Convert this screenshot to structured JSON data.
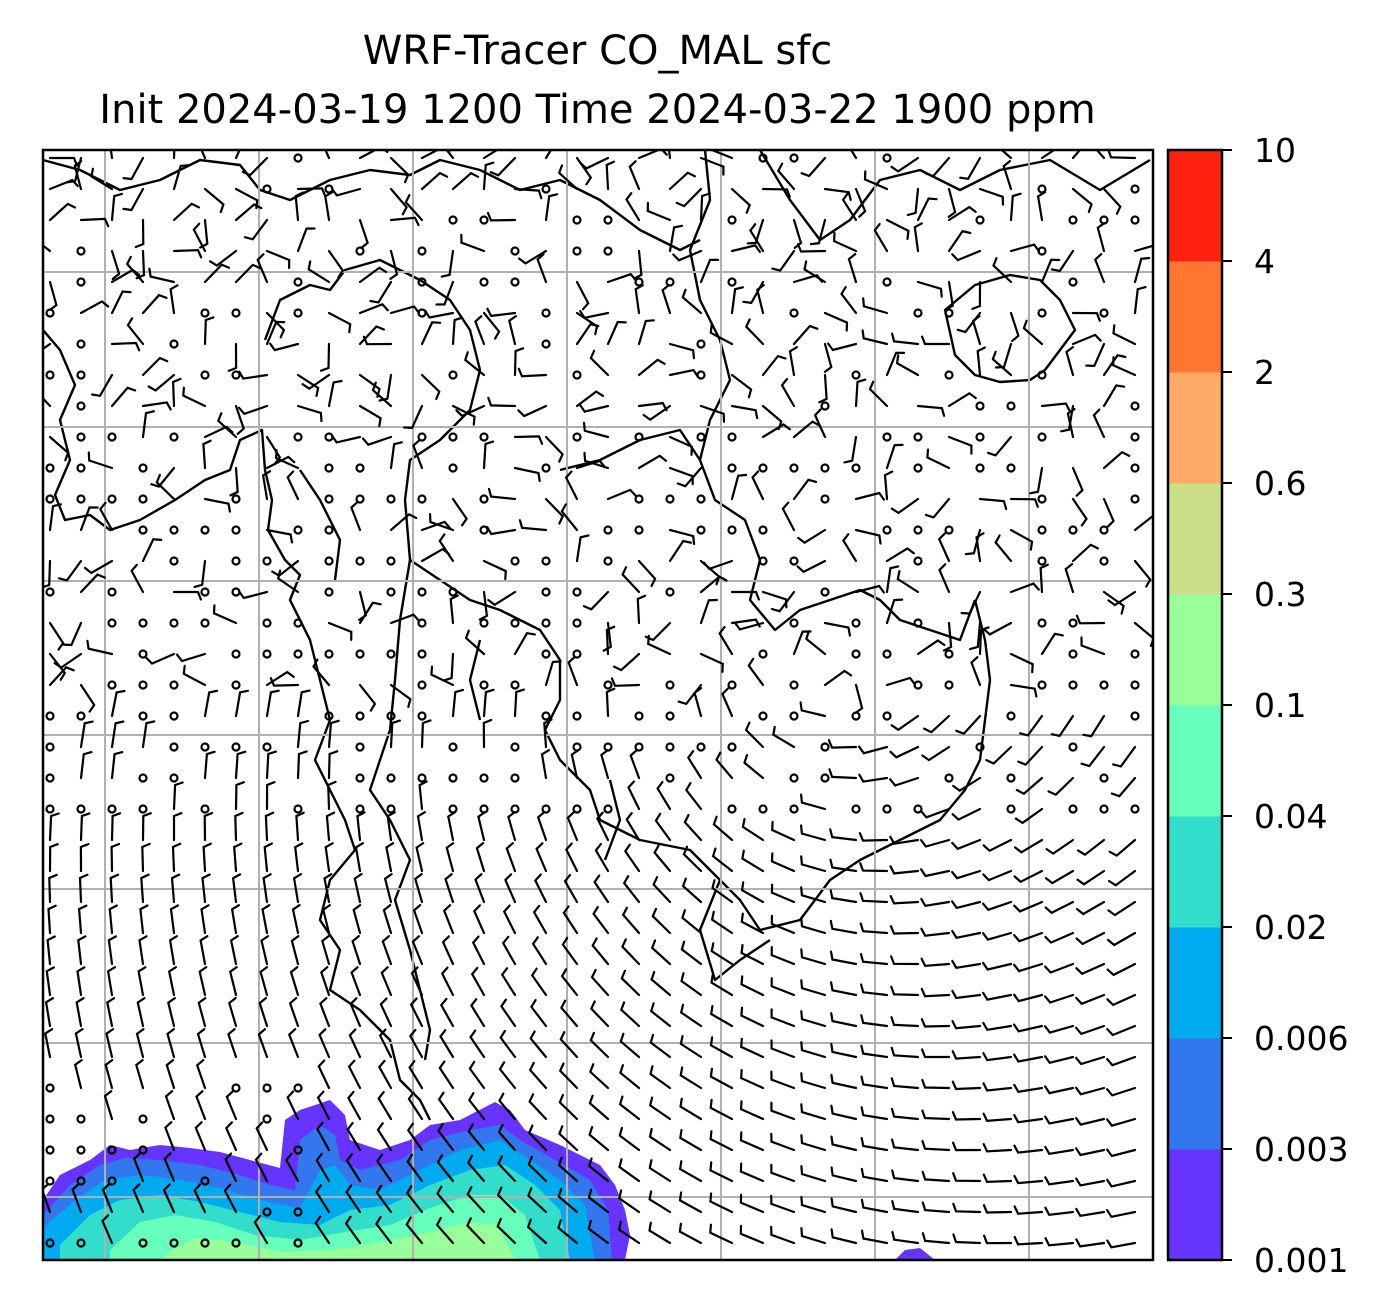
{
  "title": {
    "line1": "WRF-Tracer CO_MAL sfc",
    "line2": "Init 2024-03-19 1200 Time 2024-03-22 1900 ppm"
  },
  "map": {
    "background": "#ffffff",
    "gridline_color": "#b0b0b0",
    "coastline_color": "#000000",
    "wind_barbs": "present",
    "tracer_field_location": "bottom-left"
  },
  "colorbar": {
    "levels": [
      "0.001",
      "0.003",
      "0.006",
      "0.02",
      "0.04",
      "0.1",
      "0.3",
      "0.6",
      "2",
      "4",
      "10"
    ],
    "colors": [
      "#6633ff",
      "#3377ee",
      "#00aaee",
      "#33ddcc",
      "#66ffbb",
      "#99ff99",
      "#ccdd88",
      "#ffaa66",
      "#ff7733",
      "#ff2211"
    ]
  }
}
